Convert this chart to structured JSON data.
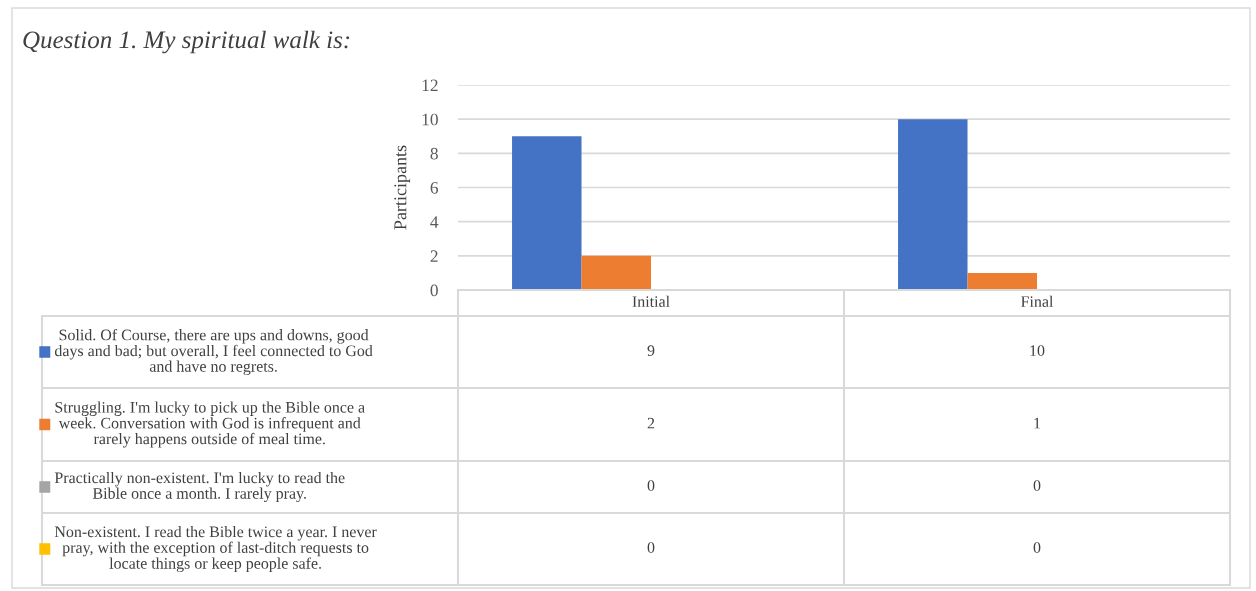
{
  "chart_data": {
    "type": "bar",
    "title": "Question 1. My spiritual walk is:",
    "ylabel": "Participants",
    "categories": [
      "Initial",
      "Final"
    ],
    "series": [
      {
        "name": "Solid. Of Course, there are ups and downs, good\ndays and bad; but overall, I feel connected to God\nand have no regrets.",
        "color": "#4472c4",
        "values": [
          9,
          10
        ]
      },
      {
        "name": "Struggling. I'm lucky to pick up the Bible once a\nweek. Conversation with God is infrequent and\nrarely happens outside of meal time.",
        "color": "#ed7d31",
        "values": [
          2,
          1
        ]
      },
      {
        "name": "Practically non-existent. I'm lucky to read the\nBible once a month. I rarely pray.",
        "color": "#a5a5a5",
        "values": [
          0,
          0
        ]
      },
      {
        "name": "Non-existent. I read the Bible twice a year. I never\npray, with the exception of last-ditch requests to\nlocate things or keep people safe.",
        "color": "#ffc000",
        "values": [
          0,
          0
        ]
      }
    ],
    "ylim": [
      0,
      12
    ],
    "yticks": [
      0,
      2,
      4,
      6,
      8,
      10,
      12
    ],
    "grid": "y",
    "legend": "bottom",
    "data_labels": true
  }
}
